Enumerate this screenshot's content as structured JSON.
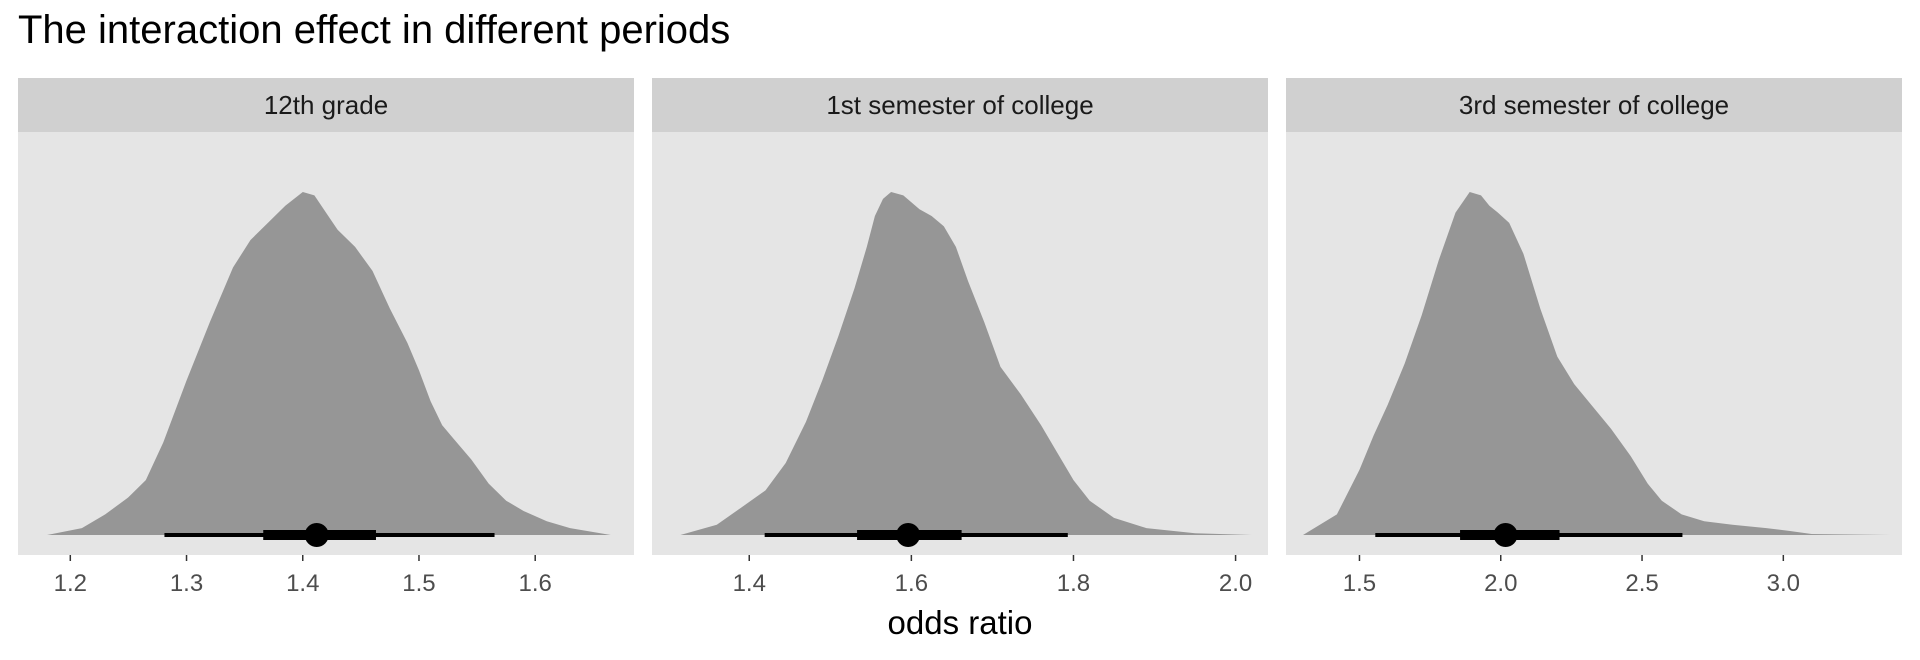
{
  "chart_data": {
    "type": "area",
    "title": "The interaction effect in different periods",
    "xlabel": "odds ratio",
    "ylabel": "",
    "grid": false,
    "legend": "none",
    "colors": {
      "panel_bg": "#e5e5e5",
      "strip_bg": "#d0d0d0",
      "density_fill": "#969696",
      "interval": "#000000",
      "tick": "#333333"
    },
    "panels": [
      {
        "name": "12th grade",
        "xlim": [
          1.155,
          1.685
        ],
        "ticks": [
          1.2,
          1.3,
          1.4,
          1.5,
          1.6
        ],
        "tick_labels": [
          "1.2",
          "1.3",
          "1.4",
          "1.5",
          "1.6"
        ],
        "density": {
          "x": [
            1.18,
            1.21,
            1.23,
            1.25,
            1.265,
            1.28,
            1.3,
            1.32,
            1.34,
            1.355,
            1.37,
            1.385,
            1.4,
            1.41,
            1.42,
            1.43,
            1.445,
            1.46,
            1.475,
            1.49,
            1.5,
            1.51,
            1.52,
            1.53,
            1.545,
            1.56,
            1.575,
            1.59,
            1.61,
            1.63,
            1.665
          ],
          "y": [
            0.0,
            0.02,
            0.06,
            0.11,
            0.16,
            0.27,
            0.45,
            0.62,
            0.78,
            0.86,
            0.91,
            0.96,
            1.0,
            0.99,
            0.94,
            0.89,
            0.84,
            0.77,
            0.66,
            0.56,
            0.48,
            0.39,
            0.32,
            0.28,
            0.22,
            0.15,
            0.1,
            0.07,
            0.04,
            0.02,
            0.0
          ]
        },
        "point": 1.412,
        "inner_interval": [
          1.366,
          1.463
        ],
        "outer_interval": [
          1.281,
          1.565
        ]
      },
      {
        "name": "1st semester of college",
        "xlim": [
          1.28,
          2.04
        ],
        "ticks": [
          1.4,
          1.6,
          1.8,
          2.0
        ],
        "tick_labels": [
          "1.4",
          "1.6",
          "1.8",
          "2.0"
        ],
        "density": {
          "x": [
            1.315,
            1.36,
            1.39,
            1.42,
            1.445,
            1.47,
            1.49,
            1.51,
            1.53,
            1.545,
            1.555,
            1.565,
            1.575,
            1.59,
            1.61,
            1.625,
            1.64,
            1.655,
            1.67,
            1.69,
            1.71,
            1.735,
            1.76,
            1.78,
            1.8,
            1.82,
            1.85,
            1.89,
            1.95,
            2.02
          ],
          "y": [
            0.0,
            0.03,
            0.08,
            0.13,
            0.21,
            0.33,
            0.45,
            0.58,
            0.72,
            0.84,
            0.93,
            0.98,
            1.0,
            0.99,
            0.95,
            0.93,
            0.9,
            0.84,
            0.74,
            0.62,
            0.49,
            0.41,
            0.32,
            0.24,
            0.16,
            0.1,
            0.05,
            0.02,
            0.005,
            0.0
          ]
        },
        "point": 1.596,
        "inner_interval": [
          1.533,
          1.662
        ],
        "outer_interval": [
          1.419,
          1.793
        ]
      },
      {
        "name": "3rd semester of college",
        "xlim": [
          1.24,
          3.42
        ],
        "ticks": [
          1.5,
          2.0,
          2.5,
          3.0
        ],
        "tick_labels": [
          "1.5",
          "2.0",
          "2.5",
          "3.0"
        ],
        "density": {
          "x": [
            1.3,
            1.42,
            1.5,
            1.55,
            1.6,
            1.66,
            1.72,
            1.78,
            1.84,
            1.89,
            1.93,
            1.96,
            1.99,
            2.03,
            2.08,
            2.14,
            2.2,
            2.26,
            2.32,
            2.39,
            2.46,
            2.52,
            2.57,
            2.64,
            2.72,
            2.82,
            2.94,
            3.02,
            3.1,
            3.38
          ],
          "y": [
            0.0,
            0.06,
            0.19,
            0.29,
            0.38,
            0.5,
            0.64,
            0.8,
            0.94,
            1.0,
            0.99,
            0.96,
            0.94,
            0.91,
            0.82,
            0.66,
            0.52,
            0.44,
            0.38,
            0.31,
            0.23,
            0.15,
            0.1,
            0.06,
            0.04,
            0.03,
            0.02,
            0.012,
            0.003,
            0.0
          ]
        },
        "point": 2.017,
        "inner_interval": [
          1.856,
          2.208
        ],
        "outer_interval": [
          1.556,
          2.643
        ]
      }
    ]
  }
}
